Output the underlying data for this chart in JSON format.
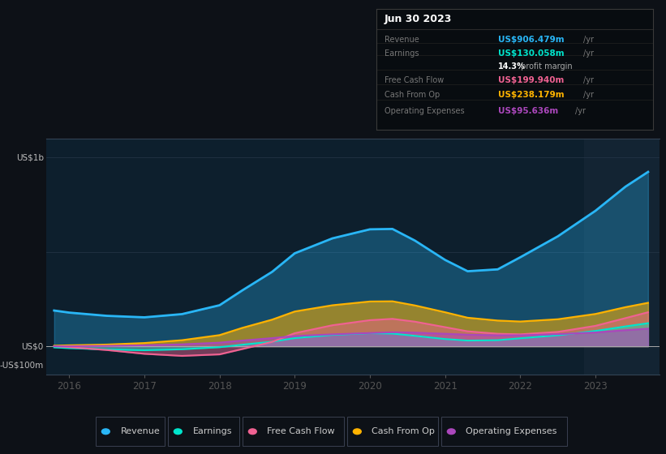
{
  "bg_color": "#0d1117",
  "chart_bg": "#0d1f2d",
  "years": [
    2015.8,
    2016.0,
    2016.5,
    2017.0,
    2017.5,
    2018.0,
    2018.3,
    2018.7,
    2019.0,
    2019.5,
    2020.0,
    2020.3,
    2020.6,
    2021.0,
    2021.3,
    2021.7,
    2022.0,
    2022.5,
    2023.0,
    2023.4,
    2023.7
  ],
  "revenue": [
    195,
    185,
    155,
    140,
    155,
    200,
    280,
    400,
    500,
    590,
    640,
    650,
    620,
    400,
    360,
    390,
    440,
    570,
    720,
    870,
    970
  ],
  "earnings": [
    -5,
    -8,
    -18,
    -28,
    -20,
    -5,
    8,
    20,
    45,
    65,
    75,
    72,
    65,
    28,
    25,
    30,
    38,
    55,
    80,
    110,
    132
  ],
  "free_cf": [
    2,
    0,
    -15,
    -45,
    -65,
    -55,
    -20,
    20,
    70,
    120,
    150,
    155,
    145,
    90,
    75,
    65,
    55,
    65,
    100,
    155,
    200
  ],
  "cash_op": [
    3,
    5,
    8,
    15,
    25,
    55,
    90,
    145,
    190,
    225,
    245,
    250,
    235,
    165,
    145,
    135,
    120,
    135,
    165,
    215,
    245
  ],
  "op_expenses": [
    0,
    0,
    2,
    5,
    8,
    18,
    30,
    45,
    55,
    65,
    72,
    78,
    75,
    65,
    60,
    58,
    55,
    62,
    72,
    88,
    98
  ],
  "revenue_color": "#29b6f6",
  "earnings_color": "#00e5cc",
  "free_cf_color": "#f06292",
  "cash_op_color": "#ffb300",
  "op_expenses_color": "#ab47bc",
  "infobox_bg": "#080c10",
  "infobox_title": "Jun 30 2023",
  "table_data": [
    [
      "Revenue",
      "US$906.479m",
      "/yr",
      "#29b6f6"
    ],
    [
      "Earnings",
      "US$130.058m",
      "/yr",
      "#00e5cc"
    ],
    [
      "",
      "14.3%",
      " profit margin",
      "#ffffff"
    ],
    [
      "Free Cash Flow",
      "US$199.940m",
      "/yr",
      "#f06292"
    ],
    [
      "Cash From Op",
      "US$238.179m",
      "/yr",
      "#ffb300"
    ],
    [
      "Operating Expenses",
      "US$95.636m",
      "/yr",
      "#ab47bc"
    ]
  ],
  "ylim": [
    -150,
    1100
  ],
  "xlim": [
    2015.7,
    2023.85
  ],
  "yticks_values": [
    1000,
    500,
    0,
    -100
  ],
  "yticks_labels": [
    "US$1b",
    "",
    "US$0",
    "-US$100m"
  ],
  "xtick_years": [
    2016,
    2017,
    2018,
    2019,
    2020,
    2021,
    2022,
    2023
  ],
  "highlight_start": 2022.85,
  "legend": [
    {
      "label": "Revenue",
      "color": "#29b6f6"
    },
    {
      "label": "Earnings",
      "color": "#00e5cc"
    },
    {
      "label": "Free Cash Flow",
      "color": "#f06292"
    },
    {
      "label": "Cash From Op",
      "color": "#ffb300"
    },
    {
      "label": "Operating Expenses",
      "color": "#ab47bc"
    }
  ]
}
